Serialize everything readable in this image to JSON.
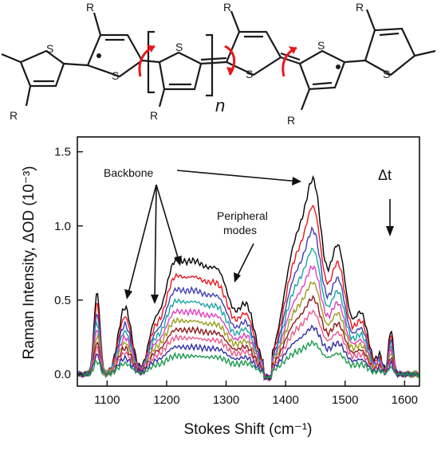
{
  "structure": {
    "substituent_label": "R",
    "sulfur_label": "S",
    "repeat_label": "n"
  },
  "chart_data": {
    "type": "line",
    "xlabel": "Stokes Shift (cm⁻¹)",
    "ylabel": "Raman Intensity, ΔOD (10⁻³)",
    "xlim": [
      1050,
      1625
    ],
    "ylim": [
      -0.08,
      1.6
    ],
    "xticks": [
      "1100",
      "1200",
      "1300",
      "1400",
      "1500",
      "1600"
    ],
    "yticks": [
      "0.0",
      "0.5",
      "1.0",
      "1.5"
    ],
    "grid": false,
    "annotations": {
      "backbone": "Backbone",
      "peripheral": "Peripheral modes",
      "delta_t": "Δt"
    },
    "series_colors": [
      "#000000",
      "#e8171d",
      "#4040b0",
      "#1aa6a6",
      "#e040c0",
      "#9c9c20",
      "#8a1a1a",
      "#e85a8a",
      "#3030a0",
      "#1a9a4a"
    ],
    "profile_peaks": [
      {
        "center": 1083,
        "width": 5,
        "height": 0.55
      },
      {
        "center": 1130,
        "width": 11,
        "height": 0.45
      },
      {
        "center": 1178,
        "width": 10,
        "height": 0.25
      },
      {
        "center": 1208,
        "width": 16,
        "height": 0.55
      },
      {
        "center": 1245,
        "width": 22,
        "height": 0.68
      },
      {
        "center": 1290,
        "width": 20,
        "height": 0.6
      },
      {
        "center": 1335,
        "width": 14,
        "height": 0.42
      },
      {
        "center": 1420,
        "width": 22,
        "height": 0.9
      },
      {
        "center": 1450,
        "width": 13,
        "height": 0.9
      },
      {
        "center": 1488,
        "width": 14,
        "height": 0.85
      },
      {
        "center": 1527,
        "width": 12,
        "height": 0.4
      },
      {
        "center": 1558,
        "width": 5,
        "height": 0.12
      },
      {
        "center": 1577,
        "width": 4,
        "height": 0.3
      }
    ],
    "series_scales": [
      1.0,
      0.86,
      0.74,
      0.64,
      0.55,
      0.47,
      0.39,
      0.32,
      0.24,
      0.16
    ]
  }
}
